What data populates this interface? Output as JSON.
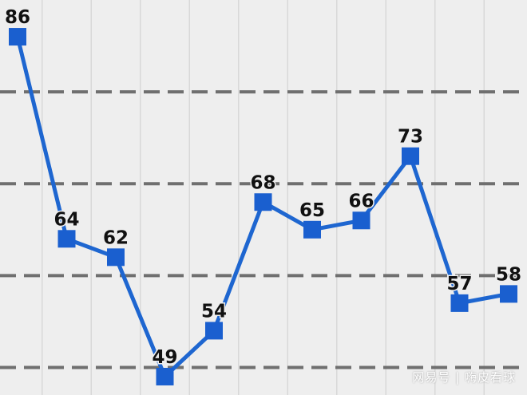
{
  "chart_data": {
    "type": "line",
    "title": "",
    "xlabel": "",
    "ylabel": "",
    "values": [
      86,
      64,
      62,
      49,
      54,
      68,
      65,
      66,
      73,
      57,
      58
    ],
    "labels": [
      "86",
      "64",
      "62",
      "49",
      "54",
      "68",
      "65",
      "66",
      "73",
      "57",
      "58"
    ],
    "ylim": [
      47,
      90
    ],
    "gridlines": [
      50,
      60,
      70,
      80
    ],
    "grid": "horizontal dashed, vertical light",
    "marker": "square",
    "colors": {
      "line": "#1e66d0",
      "marker": "#1a5fcf",
      "label": "#111111",
      "grid": "#6f6f6f",
      "background": "#eeeeee"
    }
  },
  "watermark": "网易号 | 嗨皮看球"
}
